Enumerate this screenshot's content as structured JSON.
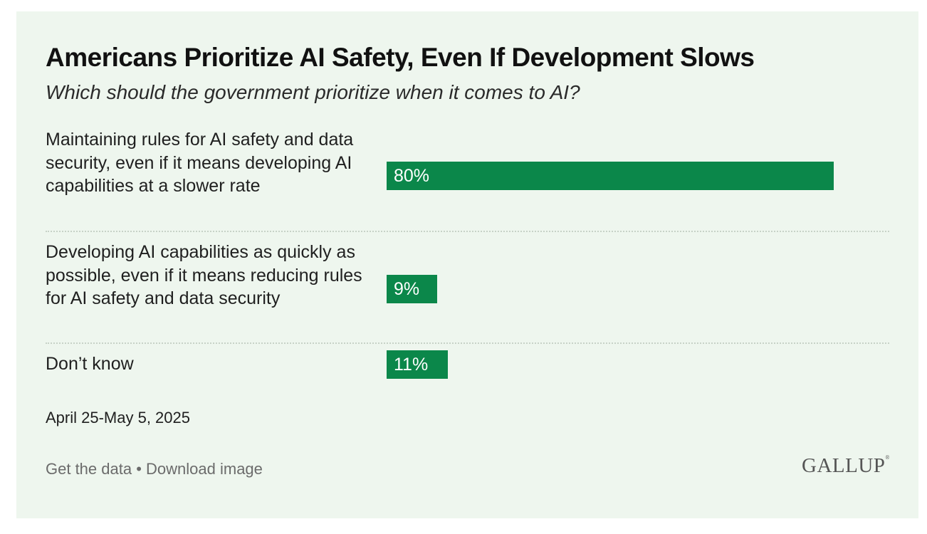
{
  "title": "Americans Prioritize AI Safety, Even If Development Slows",
  "subtitle": "Which should the government prioritize when it comes to AI?",
  "chart_data": {
    "type": "bar",
    "orientation": "horizontal",
    "title": "Americans Prioritize AI Safety, Even If Development Slows",
    "subtitle": "Which should the government prioritize when it comes to AI?",
    "categories": [
      "Maintaining rules for AI safety and data security, even if it means developing AI capabilities at a slower rate",
      "Developing AI capabilities as quickly as possible, even if it means reducing rules for AI safety and data security",
      "Don’t know"
    ],
    "values": [
      80,
      9,
      11
    ],
    "value_labels": [
      "80%",
      "9%",
      "11%"
    ],
    "unit": "%",
    "xlim": [
      0,
      100
    ],
    "bar_color": "#0b874a"
  },
  "date_note": "April 25-May 5, 2025",
  "footer": {
    "get_data": "Get the data",
    "separator": " • ",
    "download": "Download image"
  },
  "logo": "GALLUP",
  "logo_mark": "®"
}
